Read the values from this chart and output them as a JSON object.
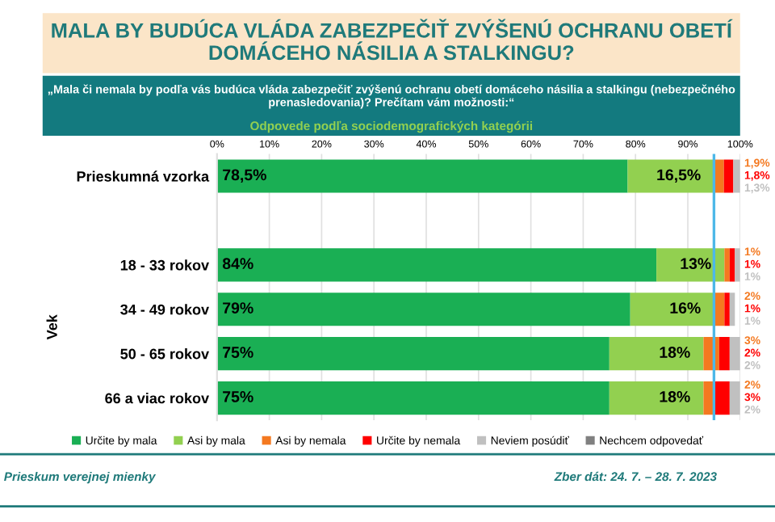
{
  "chart_data": {
    "type": "bar",
    "orientation": "horizontal",
    "stacked": true,
    "title": "MALA BY BUDÚCA VLÁDA ZABEZPEČIŤ ZVÝŠENÚ OCHRANU OBETÍ DOMÁCEHO NÁSILIA A STALKINGU?",
    "subtitle": "„Mala či nemala by podľa vás budúca vláda zabezpečiť zvýšenú ochranu obetí domáceho násilia a stalkingu (nebezpečného prenasledovania)? Prečítam vám možnosti:“",
    "annotations": [
      "Odpovede podľa sociodemografických kategórii",
      "Prieskum verejnej mienky",
      "Zber dát: 24. 7. – 28. 7. 2023"
    ],
    "ylabel": "Vek",
    "categories": [
      "Prieskumná vzorka",
      null,
      "18 - 33 rokov",
      "34 - 49 rokov",
      "50 - 65 rokov",
      "66 a viac rokov"
    ],
    "series": [
      {
        "name": "Určite by mala",
        "color": "#1aaf54",
        "values": [
          78.5,
          null,
          84,
          79,
          75,
          75
        ],
        "value_labels": [
          "78,5%",
          null,
          "84%",
          "79%",
          "75%",
          "75%"
        ]
      },
      {
        "name": "Asi by mala",
        "color": "#92d050",
        "values": [
          16.5,
          null,
          13,
          16,
          18,
          18
        ],
        "value_labels": [
          "16,5%",
          null,
          "13%",
          "16%",
          "18%",
          "18%"
        ]
      },
      {
        "name": "Asi by nemala",
        "color": "#f47920",
        "values": [
          1.9,
          null,
          1,
          2,
          3,
          2
        ],
        "value_labels": [
          "1,9%",
          null,
          "1%",
          "2%",
          "3%",
          "2%"
        ]
      },
      {
        "name": "Určite by nemala",
        "color": "#ff0000",
        "values": [
          1.8,
          null,
          1,
          1,
          2,
          3
        ],
        "value_labels": [
          "1,8%",
          null,
          "1%",
          "1%",
          "2%",
          "3%"
        ]
      },
      {
        "name": "Neviem posúdiť",
        "color": "#c0c0c0",
        "values": [
          1.3,
          null,
          1,
          1,
          2,
          2
        ],
        "value_labels": [
          "1,3%",
          null,
          "1%",
          "1%",
          "2%",
          "2%"
        ]
      },
      {
        "name": "Nechcem odpovedať",
        "color": "#808080",
        "values": [
          null,
          null,
          null,
          null,
          null,
          null
        ]
      }
    ],
    "xlim": [
      0,
      100
    ],
    "xticks": [
      {
        "value": 0,
        "label": "0%"
      },
      {
        "value": 10,
        "label": "10%"
      },
      {
        "value": 20,
        "label": "20%"
      },
      {
        "value": 30,
        "label": "30%"
      },
      {
        "value": 40,
        "label": "40%"
      },
      {
        "value": 50,
        "label": "50%"
      },
      {
        "value": 60,
        "label": "60%"
      },
      {
        "value": 70,
        "label": "70%"
      },
      {
        "value": 80,
        "label": "80%"
      },
      {
        "value": 90,
        "label": "90%"
      },
      {
        "value": 100,
        "label": "100%"
      }
    ],
    "ref_lines": [
      {
        "axis": "x",
        "value": 95,
        "color": "#4db8e8"
      }
    ],
    "grid": "x",
    "legend": "bottom"
  }
}
